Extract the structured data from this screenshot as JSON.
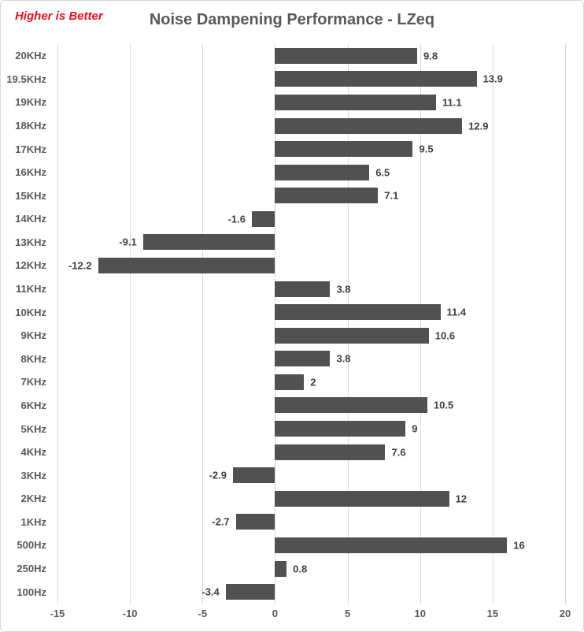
{
  "page": {
    "background": "#ffffff",
    "border_color": "#d9d9d9"
  },
  "header": {
    "note": "Higher is Better",
    "note_color": "#e81123",
    "title": "Noise Dampening Performance - LZeq",
    "title_color": "#595959"
  },
  "chart_data": {
    "type": "bar",
    "orientation": "horizontal",
    "title": "Noise Dampening Performance - LZeq",
    "annotation": "Higher is Better",
    "categories": [
      "20KHz",
      "19.5KHz",
      "19KHz",
      "18KHz",
      "17KHz",
      "16KHz",
      "15KHz",
      "14KHz",
      "13KHz",
      "12KHz",
      "11KHz",
      "10KHz",
      "9KHz",
      "8KHz",
      "7KHz",
      "6KHz",
      "5KHz",
      "4KHz",
      "3KHz",
      "2KHz",
      "1KHz",
      "500Hz",
      "250Hz",
      "100Hz"
    ],
    "values": [
      9.8,
      13.9,
      11.1,
      12.9,
      9.5,
      6.5,
      7.1,
      -1.6,
      -9.1,
      -12.2,
      3.8,
      11.4,
      10.6,
      3.8,
      2,
      10.5,
      9,
      7.6,
      -2.9,
      12,
      -2.7,
      16,
      0.8,
      -3.4
    ],
    "data_labels": [
      "9.8",
      "13.9",
      "11.1",
      "12.9",
      "9.5",
      "6.5",
      "7.1",
      "-1.6",
      "-9.1",
      "-12.2",
      "3.8",
      "11.4",
      "10.6",
      "3.8",
      "2",
      "10.5",
      "9",
      "7.6",
      "-2.9",
      "12",
      "-2.7",
      "16",
      "0.8",
      "-3.4"
    ],
    "xlabel": "",
    "ylabel": "",
    "xlim": [
      -15,
      20
    ],
    "xticks": [
      -15,
      -10,
      -5,
      0,
      5,
      10,
      15,
      20
    ],
    "xtick_labels": [
      "-15",
      "-10",
      "-5",
      "0",
      "5",
      "10",
      "15",
      "20"
    ],
    "gridlines": "vertical",
    "legend": "none",
    "bar_color": "#515151",
    "value_label_color": "#3f3f3f",
    "axis_label_color": "#595959",
    "gridline_color": "#d9d9d9"
  }
}
